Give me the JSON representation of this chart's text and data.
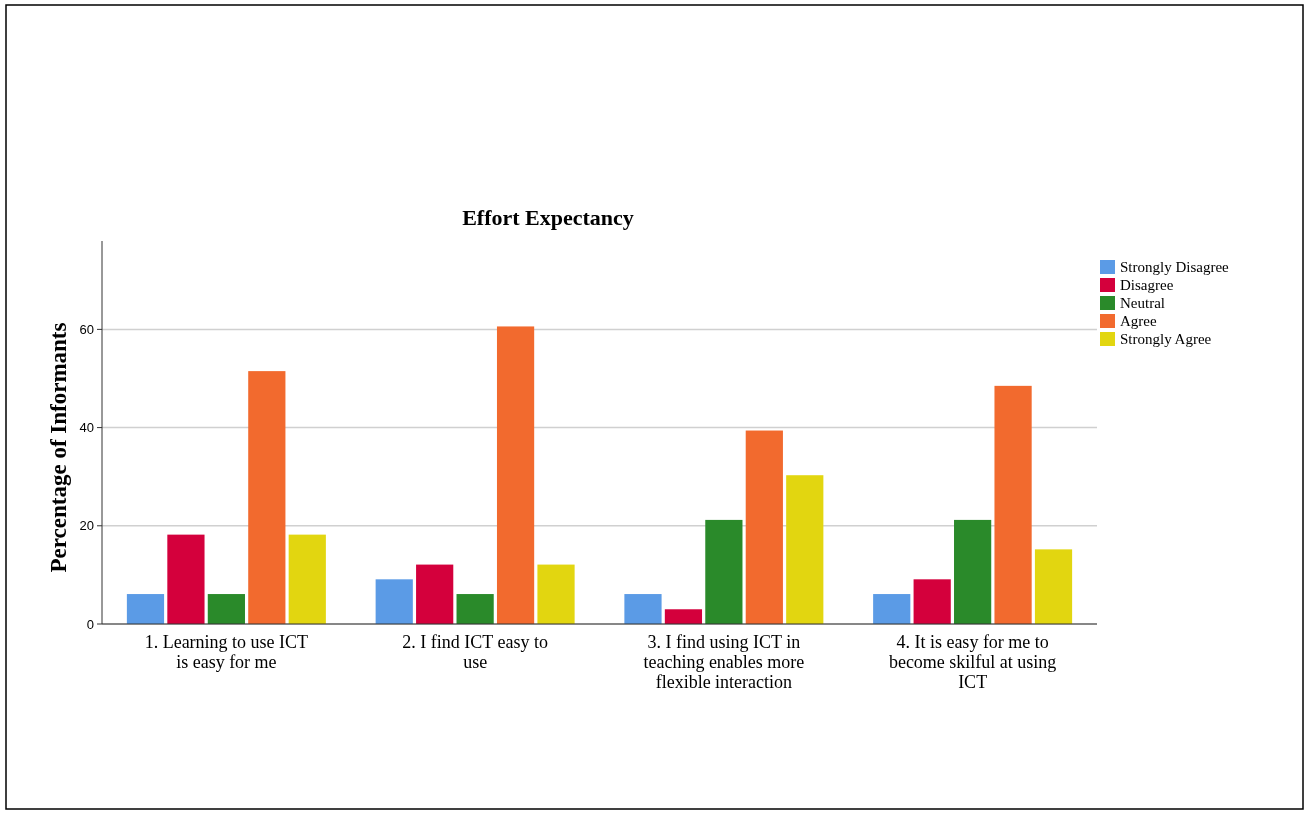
{
  "chart_data": {
    "type": "bar",
    "title": "Effort Expectancy",
    "ylabel": "Percentage of Informants",
    "categories": [
      "1. Learning to use ICT is easy for me",
      "2. I find ICT easy to use",
      "3. I find using ICT in teaching enables more flexible interaction",
      "4. It is easy for me to become skilful at using ICT"
    ],
    "series": [
      {
        "name": "Strongly Disagree",
        "color": "#5b9be6",
        "values": [
          6.1,
          9.1,
          6.1,
          6.1
        ]
      },
      {
        "name": "Disagree",
        "color": "#d4003c",
        "values": [
          18.2,
          12.1,
          3.0,
          9.1
        ]
      },
      {
        "name": "Neutral",
        "color": "#2a8a2a",
        "values": [
          6.1,
          6.1,
          21.2,
          21.2
        ]
      },
      {
        "name": "Agree",
        "color": "#f26a2e",
        "values": [
          51.5,
          60.6,
          39.4,
          48.5
        ]
      },
      {
        "name": "Strongly Agree",
        "color": "#e2d610",
        "values": [
          18.2,
          12.1,
          30.3,
          15.2
        ]
      }
    ],
    "ylim": [
      0,
      78
    ],
    "yticks": [
      0,
      20,
      40,
      60
    ],
    "grid": "y",
    "legend": "top right"
  }
}
